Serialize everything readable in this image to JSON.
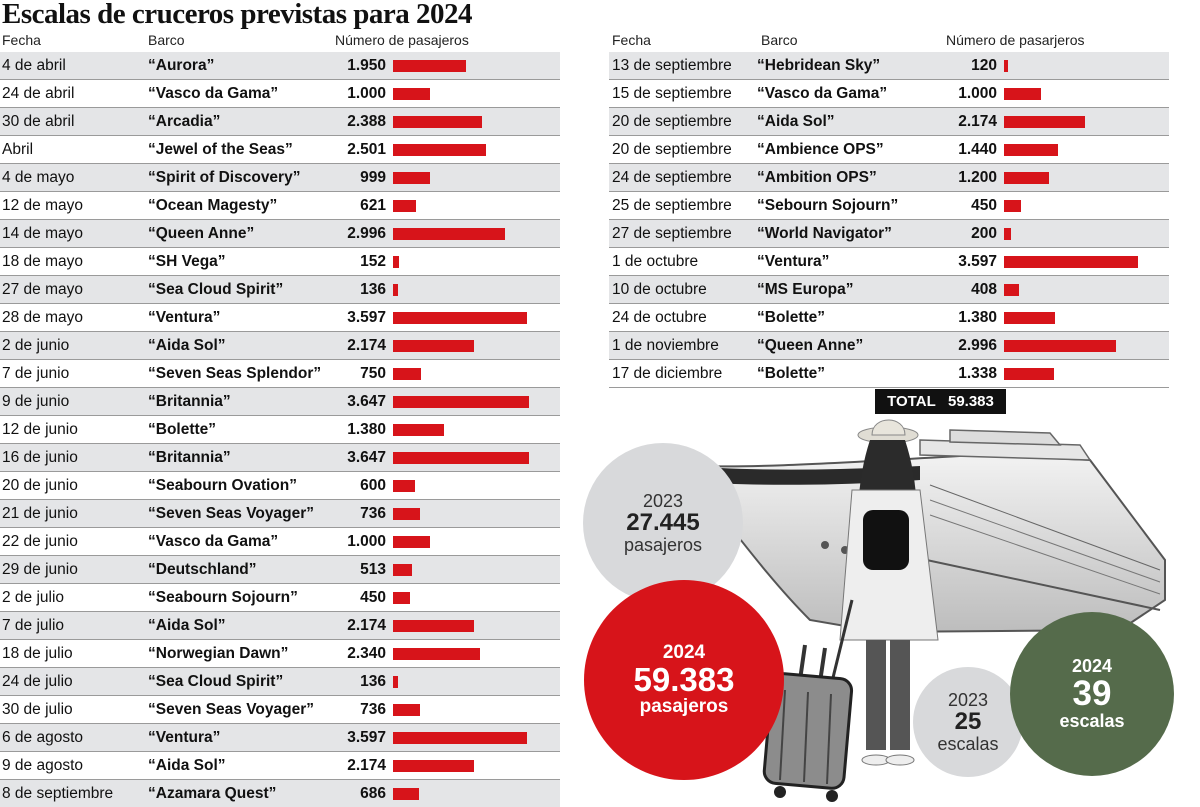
{
  "title": "Escalas de cruceros previstas para 2024",
  "headers": {
    "date": "Fecha",
    "ship": "Barco",
    "pax": "Número de pasajeros",
    "pax_right": "Número de pasarjeros"
  },
  "colors": {
    "bar": "#d7141a",
    "row_alt": "#e4e5e7",
    "red": "#d7141a",
    "green": "#556b4b",
    "grey": "#d8d9db"
  },
  "chart_data": {
    "type": "table",
    "title": "Escalas de cruceros previstas para 2024",
    "columns": [
      "Fecha",
      "Barco",
      "Número de pasajeros"
    ],
    "left_rows": [
      {
        "date": "4 de abril",
        "ship": "“Aurora”",
        "pax_label": "1.950",
        "pax": 1950
      },
      {
        "date": "24 de abril",
        "ship": "“Vasco da Gama”",
        "pax_label": "1.000",
        "pax": 1000
      },
      {
        "date": "30 de abril",
        "ship": "“Arcadia”",
        "pax_label": "2.388",
        "pax": 2388
      },
      {
        "date": "Abril",
        "ship": "“Jewel of the Seas”",
        "pax_label": "2.501",
        "pax": 2501
      },
      {
        "date": "4 de mayo",
        "ship": "“Spirit of Discovery”",
        "pax_label": "999",
        "pax": 999
      },
      {
        "date": "12 de mayo",
        "ship": "“Ocean Magesty”",
        "pax_label": "621",
        "pax": 621
      },
      {
        "date": "14 de mayo",
        "ship": "“Queen Anne”",
        "pax_label": "2.996",
        "pax": 2996
      },
      {
        "date": "18 de mayo",
        "ship": "“SH Vega”",
        "pax_label": "152",
        "pax": 152
      },
      {
        "date": "27 de mayo",
        "ship": "“Sea Cloud Spirit”",
        "pax_label": "136",
        "pax": 136
      },
      {
        "date": "28 de mayo",
        "ship": "“Ventura”",
        "pax_label": "3.597",
        "pax": 3597
      },
      {
        "date": "2 de junio",
        "ship": "“Aida Sol”",
        "pax_label": "2.174",
        "pax": 2174
      },
      {
        "date": "7 de junio",
        "ship": "“Seven Seas Splendor”",
        "pax_label": "750",
        "pax": 750
      },
      {
        "date": "9 de junio",
        "ship": "“Britannia”",
        "pax_label": "3.647",
        "pax": 3647
      },
      {
        "date": "12 de junio",
        "ship": "“Bolette”",
        "pax_label": "1.380",
        "pax": 1380
      },
      {
        "date": "16 de junio",
        "ship": "“Britannia”",
        "pax_label": "3.647",
        "pax": 3647
      },
      {
        "date": "20 de junio",
        "ship": "“Seabourn Ovation”",
        "pax_label": "600",
        "pax": 600
      },
      {
        "date": "21 de junio",
        "ship": "“Seven Seas Voyager”",
        "pax_label": "736",
        "pax": 736
      },
      {
        "date": "22 de junio",
        "ship": "“Vasco da Gama”",
        "pax_label": "1.000",
        "pax": 1000
      },
      {
        "date": "29 de junio",
        "ship": "“Deutschland”",
        "pax_label": "513",
        "pax": 513
      },
      {
        "date": "2 de julio",
        "ship": "“Seabourn Sojourn”",
        "pax_label": "450",
        "pax": 450
      },
      {
        "date": "7 de julio",
        "ship": "“Aida Sol”",
        "pax_label": "2.174",
        "pax": 2174
      },
      {
        "date": "18 de julio",
        "ship": "“Norwegian Dawn”",
        "pax_label": "2.340",
        "pax": 2340
      },
      {
        "date": "24 de julio",
        "ship": "“Sea Cloud Spirit”",
        "pax_label": "136",
        "pax": 136
      },
      {
        "date": "30 de julio",
        "ship": "“Seven Seas Voyager”",
        "pax_label": "736",
        "pax": 736
      },
      {
        "date": "6 de agosto",
        "ship": "“Ventura”",
        "pax_label": "3.597",
        "pax": 3597
      },
      {
        "date": "9 de agosto",
        "ship": "“Aida Sol”",
        "pax_label": "2.174",
        "pax": 2174
      },
      {
        "date": "8 de septiembre",
        "ship": "“Azamara Quest”",
        "pax_label": "686",
        "pax": 686
      }
    ],
    "right_rows": [
      {
        "date": "13 de septiembre",
        "ship": "“Hebridean Sky”",
        "pax_label": "120",
        "pax": 120
      },
      {
        "date": "15 de septiembre",
        "ship": "“Vasco da Gama”",
        "pax_label": "1.000",
        "pax": 1000
      },
      {
        "date": "20 de septiembre",
        "ship": "“Aida Sol”",
        "pax_label": "2.174",
        "pax": 2174
      },
      {
        "date": "20 de septiembre",
        "ship": "“Ambience OPS”",
        "pax_label": "1.440",
        "pax": 1440
      },
      {
        "date": "24 de septiembre",
        "ship": "“Ambition OPS”",
        "pax_label": "1.200",
        "pax": 1200
      },
      {
        "date": "25 de septiembre",
        "ship": "“Sebourn Sojourn”",
        "pax_label": "450",
        "pax": 450
      },
      {
        "date": "27 de septiembre",
        "ship": "“World Navigator”",
        "pax_label": "200",
        "pax": 200
      },
      {
        "date": "1 de octubre",
        "ship": "“Ventura”",
        "pax_label": "3.597",
        "pax": 3597
      },
      {
        "date": "10 de octubre",
        "ship": "“MS Europa”",
        "pax_label": "408",
        "pax": 408
      },
      {
        "date": "24 de octubre",
        "ship": "“Bolette”",
        "pax_label": "1.380",
        "pax": 1380
      },
      {
        "date": "1 de noviembre",
        "ship": "“Queen Anne”",
        "pax_label": "2.996",
        "pax": 2996
      },
      {
        "date": "17 de diciembre",
        "ship": "“Bolette”",
        "pax_label": "1.338",
        "pax": 1338
      }
    ],
    "bar_max": 3647,
    "total_label": "TOTAL",
    "total_value": "59.383"
  },
  "summary": {
    "pax_2023": {
      "year": "2023",
      "value": "27.445",
      "label": "pasajeros"
    },
    "pax_2024": {
      "year": "2024",
      "value": "59.383",
      "label": "pasajeros"
    },
    "calls_2023": {
      "year": "2023",
      "value": "25",
      "label": "escalas"
    },
    "calls_2024": {
      "year": "2024",
      "value": "39",
      "label": "escalas"
    }
  }
}
